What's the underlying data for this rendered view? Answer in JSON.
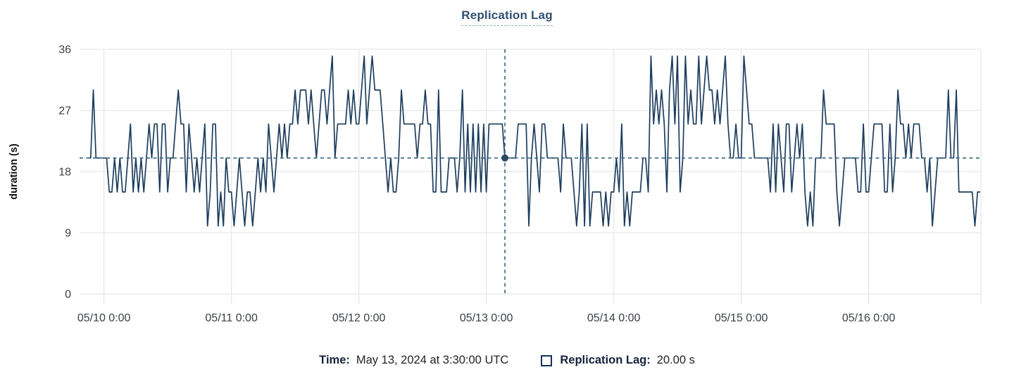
{
  "title": "Replication Lag",
  "colors": {
    "series": "#1d3d5e",
    "crosshair": "#36647f",
    "crosshair_dot": "#2b4a66",
    "grid": "#e8e8e8",
    "tick_text": "#3a3f47",
    "axis_label_text": "#111111",
    "title_text": "#2f5073",
    "legend_navy": "#16325c"
  },
  "y_axis": {
    "label": "duration (s)",
    "ticks": [
      0,
      9,
      18,
      27,
      36
    ]
  },
  "x_axis": {
    "ticks": [
      {
        "index": 6,
        "label": "05/10 0:00"
      },
      {
        "index": 54,
        "label": "05/11 0:00"
      },
      {
        "index": 102,
        "label": "05/12 0:00"
      },
      {
        "index": 150,
        "label": "05/13 0:00"
      },
      {
        "index": 198,
        "label": "05/14 0:00"
      },
      {
        "index": 246,
        "label": "05/15 0:00"
      },
      {
        "index": 294,
        "label": "05/16 0:00"
      }
    ]
  },
  "crosshair": {
    "index": 157,
    "value": 20
  },
  "footer": {
    "time_label": "Time:",
    "time_value": "May 13, 2024 at 3:30:00 UTC",
    "series_label": "Replication Lag:",
    "series_value": "20.00 s"
  },
  "chart_data": {
    "type": "line",
    "title": "Replication Lag",
    "xlabel": "",
    "ylabel": "duration (s)",
    "unit": "s",
    "start": "05/09 21:00",
    "interval_minutes": 30,
    "ylim": [
      0,
      36
    ],
    "x_tick_labels": [
      "05/10 0:00",
      "05/11 0:00",
      "05/12 0:00",
      "05/13 0:00",
      "05/14 0:00",
      "05/15 0:00",
      "05/16 0:00"
    ],
    "grid": true,
    "legend_position": "bottom",
    "annotations": {
      "hover_time": "May 13, 2024 at 3:30:00 UTC",
      "hover_value_s": 20.0
    },
    "values": [
      20,
      20,
      30,
      20,
      20,
      20,
      20,
      20,
      15,
      15,
      20,
      15,
      20,
      15,
      15,
      20,
      25,
      15,
      20,
      15,
      20,
      15,
      20,
      25,
      20,
      25,
      25,
      15,
      25,
      25,
      15,
      20,
      20,
      25,
      30,
      25,
      25,
      15,
      25,
      20,
      15,
      20,
      15,
      20,
      25,
      10,
      15,
      25,
      25,
      10,
      15,
      10,
      20,
      15,
      15,
      10,
      15,
      20,
      15,
      10,
      15,
      15,
      10,
      15,
      20,
      15,
      20,
      15,
      25,
      20,
      15,
      20,
      25,
      20,
      25,
      20,
      25,
      25,
      30,
      25,
      30,
      30,
      30,
      25,
      30,
      25,
      20,
      25,
      30,
      30,
      25,
      30,
      35,
      20,
      25,
      25,
      25,
      25,
      30,
      25,
      30,
      25,
      25,
      30,
      35,
      25,
      30,
      35,
      30,
      30,
      30,
      25,
      20,
      15,
      20,
      15,
      15,
      20,
      30,
      25,
      25,
      25,
      25,
      25,
      20,
      25,
      25,
      30,
      25,
      25,
      15,
      15,
      30,
      15,
      15,
      15,
      20,
      20,
      20,
      15,
      20,
      30,
      15,
      25,
      15,
      25,
      15,
      25,
      15,
      25,
      15,
      25,
      25,
      25,
      25,
      25,
      25,
      20,
      20,
      20,
      20,
      20,
      25,
      25,
      25,
      25,
      10,
      20,
      25,
      20,
      15,
      25,
      25,
      20,
      20,
      20,
      20,
      20,
      15,
      25,
      20,
      20,
      20,
      15,
      10,
      15,
      25,
      10,
      25,
      10,
      15,
      15,
      15,
      15,
      10,
      15,
      10,
      15,
      15,
      20,
      15,
      25,
      10,
      15,
      10,
      15,
      15,
      15,
      15,
      20,
      20,
      15,
      35,
      25,
      30,
      25,
      30,
      25,
      15,
      30,
      35,
      25,
      35,
      15,
      20,
      35,
      25,
      30,
      25,
      25,
      35,
      25,
      30,
      35,
      30,
      30,
      25,
      30,
      25,
      30,
      35,
      25,
      20,
      20,
      25,
      20,
      20,
      35,
      30,
      25,
      25,
      20,
      20,
      20,
      20,
      20,
      20,
      15,
      25,
      15,
      25,
      20,
      15,
      25,
      25,
      15,
      20,
      25,
      20,
      25,
      15,
      10,
      15,
      10,
      20,
      20,
      20,
      30,
      25,
      25,
      25,
      25,
      15,
      10,
      15,
      20,
      20,
      20,
      20,
      20,
      15,
      15,
      25,
      15,
      15,
      20,
      25,
      25,
      25,
      25,
      15,
      15,
      25,
      15,
      20,
      30,
      25,
      25,
      20,
      25,
      20,
      25,
      25,
      25,
      20,
      20,
      15,
      20,
      10,
      15,
      20,
      20,
      20,
      20,
      30,
      20,
      20,
      30,
      15,
      15,
      15,
      15,
      15,
      15,
      10,
      15,
      15
    ]
  }
}
